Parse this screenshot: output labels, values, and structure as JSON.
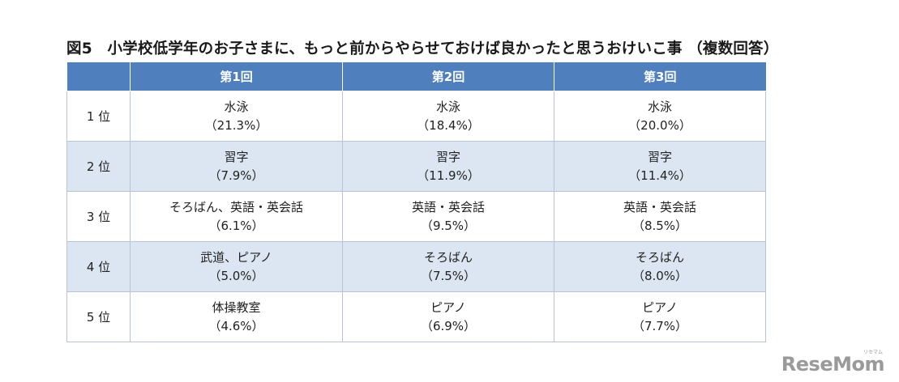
{
  "chart_data": {
    "type": "table",
    "title": "図5　小学校低学年のお子さまに、もっと前からやらせておけば良かったと思うおけいこ事 （複数回答）",
    "columns": [
      "",
      "第1回",
      "第2回",
      "第3回"
    ],
    "rows": [
      {
        "rank": "1 位",
        "cells": [
          {
            "item": "水泳",
            "pct": "（21.3%）"
          },
          {
            "item": "水泳",
            "pct": "（18.4%）"
          },
          {
            "item": "水泳",
            "pct": "（20.0%）"
          }
        ]
      },
      {
        "rank": "2 位",
        "cells": [
          {
            "item": "習字",
            "pct": "（7.9%）"
          },
          {
            "item": "習字",
            "pct": "（11.9%）"
          },
          {
            "item": "習字",
            "pct": "（11.4%）"
          }
        ]
      },
      {
        "rank": "3 位",
        "cells": [
          {
            "item": "そろばん、英語・英会話",
            "pct": "（6.1%）"
          },
          {
            "item": "英語・英会話",
            "pct": "（9.5%）"
          },
          {
            "item": "英語・英会話",
            "pct": "（8.5%）"
          }
        ]
      },
      {
        "rank": "4 位",
        "cells": [
          {
            "item": "武道、ピアノ",
            "pct": "（5.0%）"
          },
          {
            "item": "そろばん",
            "pct": "（7.5%）"
          },
          {
            "item": "そろばん",
            "pct": "（8.0%）"
          }
        ]
      },
      {
        "rank": "5 位",
        "cells": [
          {
            "item": "体操教室",
            "pct": "（4.6%）"
          },
          {
            "item": "ピアノ",
            "pct": "（6.9%）"
          },
          {
            "item": "ピアノ",
            "pct": "（7.7%）"
          }
        ]
      }
    ],
    "colors": {
      "header_bg": "#4f80bd",
      "header_text": "#ffffff",
      "row_alt_bg": "#dce6f2",
      "row_bg": "#ffffff",
      "border": "#b8c4d6"
    }
  },
  "logo": {
    "text": "ReseMom",
    "small": "リセマム"
  }
}
